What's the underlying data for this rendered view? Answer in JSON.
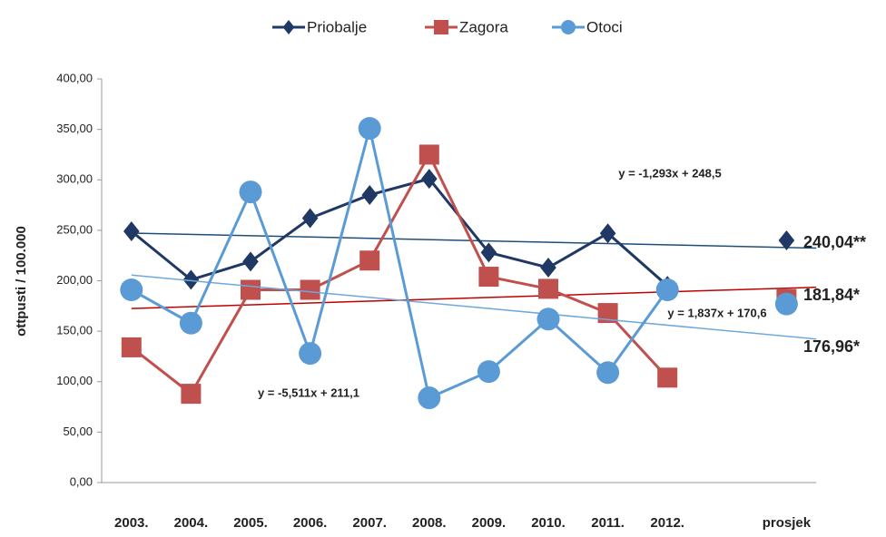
{
  "chart_data": {
    "type": "line",
    "y_axis_label": "ottpusti / 100.000",
    "categories": [
      "2003.",
      "2004.",
      "2005.",
      "2006.",
      "2007.",
      "2008.",
      "2009.",
      "2010.",
      "2011.",
      "2012.",
      null,
      "prosjek"
    ],
    "series": [
      {
        "name": "Priobalje",
        "color": "#1f3864",
        "marker": "diamond",
        "values": [
          249,
          201,
          219,
          262,
          285,
          301,
          228,
          213,
          247,
          195,
          null,
          240.04
        ],
        "value_labels": [
          null,
          null,
          null,
          null,
          null,
          null,
          null,
          null,
          null,
          null,
          null,
          "240,04**"
        ],
        "trend": {
          "color": "#1f4e79",
          "label": "y = -1,293x + 248,5",
          "slope": -1.293,
          "intercept": 248.5
        }
      },
      {
        "name": "Zagora",
        "color": "#c0504d",
        "marker": "square",
        "values": [
          134,
          88,
          191,
          191,
          220,
          325,
          204,
          192,
          168,
          104,
          null,
          181.84
        ],
        "value_labels": [
          null,
          null,
          null,
          null,
          null,
          null,
          null,
          null,
          null,
          null,
          null,
          "181,84*"
        ],
        "trend": {
          "color": "#c00000",
          "label": "y = 1,837x + 170,6",
          "slope": 1.837,
          "intercept": 170.6
        }
      },
      {
        "name": "Otoci",
        "color": "#5b9bd5",
        "marker": "circle",
        "values": [
          191,
          158,
          288,
          128,
          351,
          84,
          110,
          162,
          109,
          191,
          null,
          176.96
        ],
        "value_labels": [
          null,
          null,
          null,
          null,
          null,
          null,
          null,
          null,
          null,
          null,
          null,
          "176,96*"
        ],
        "trend": {
          "color": "#6fa8dc",
          "label": "y = -5,511x + 211,1",
          "slope": -5.511,
          "intercept": 211.1
        }
      }
    ],
    "ylim": [
      0,
      400
    ],
    "yticks": [
      {
        "value": 0,
        "label": "0,00"
      },
      {
        "value": 50,
        "label": "50,00"
      },
      {
        "value": 100,
        "label": "100,00"
      },
      {
        "value": 150,
        "label": "150,00"
      },
      {
        "value": 200,
        "label": "200,00"
      },
      {
        "value": 250,
        "label": "250,00"
      },
      {
        "value": 300,
        "label": "300,00"
      },
      {
        "value": 350,
        "label": "350,00"
      },
      {
        "value": 400,
        "label": "400,00"
      }
    ],
    "grid": false,
    "legend": "top"
  }
}
